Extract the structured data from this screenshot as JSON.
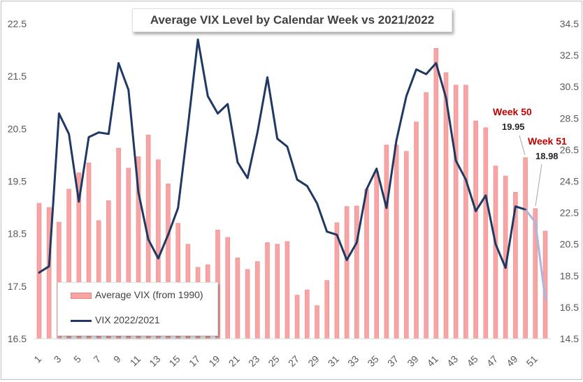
{
  "chart_data": {
    "type": "bar+line",
    "title": "Average VIX Level by Calendar Week vs 2021/2022",
    "xlabel": "",
    "ylabel_left": "",
    "ylabel_right": "",
    "x": [
      1,
      2,
      3,
      4,
      5,
      6,
      7,
      8,
      9,
      10,
      11,
      12,
      13,
      14,
      15,
      16,
      17,
      18,
      19,
      20,
      21,
      22,
      23,
      24,
      25,
      26,
      27,
      28,
      29,
      30,
      31,
      32,
      33,
      34,
      35,
      36,
      37,
      38,
      39,
      40,
      41,
      42,
      43,
      44,
      45,
      46,
      47,
      48,
      49,
      50,
      51,
      52
    ],
    "x_tick_labels": [
      "1",
      "3",
      "5",
      "7",
      "9",
      "11",
      "13",
      "15",
      "17",
      "19",
      "21",
      "23",
      "25",
      "27",
      "29",
      "31",
      "33",
      "35",
      "37",
      "39",
      "41",
      "43",
      "45",
      "47",
      "49",
      "51"
    ],
    "y_left_ticks": [
      "16.5",
      "17.5",
      "18.5",
      "19.5",
      "20.5",
      "21.5",
      "22.5"
    ],
    "y_right_ticks": [
      "14.5",
      "16.5",
      "18.5",
      "20.5",
      "22.5",
      "24.5",
      "26.5",
      "28.5",
      "30.5",
      "32.5",
      "34.5"
    ],
    "ylim_left": [
      16.5,
      22.5
    ],
    "ylim_right": [
      14.5,
      34.5
    ],
    "series": [
      {
        "name": "Average VIX (from 1990)",
        "type": "bar",
        "axis": "left",
        "color": "#f6a4a4",
        "values": [
          19.08,
          19.0,
          18.72,
          19.35,
          19.66,
          19.85,
          18.75,
          19.13,
          20.13,
          19.75,
          19.97,
          20.38,
          19.91,
          19.45,
          18.7,
          18.3,
          17.86,
          17.91,
          18.57,
          18.43,
          18.04,
          17.82,
          17.97,
          18.33,
          18.3,
          18.35,
          17.33,
          17.43,
          17.13,
          17.61,
          18.71,
          19.02,
          19.03,
          19.35,
          19.68,
          20.19,
          20.19,
          20.07,
          20.63,
          21.19,
          22.03,
          21.57,
          21.33,
          21.33,
          20.65,
          20.52,
          19.79,
          19.6,
          19.29,
          19.95,
          18.98,
          18.55
        ]
      },
      {
        "name": "VIX 2022/2021",
        "type": "line",
        "axis": "right",
        "color": "#1f3864",
        "values": [
          18.7,
          19.1,
          28.8,
          27.5,
          23.2,
          27.3,
          27.6,
          27.5,
          32.0,
          30.3,
          23.8,
          20.8,
          19.6,
          21.1,
          22.8,
          28.0,
          33.5,
          29.9,
          28.8,
          29.4,
          25.7,
          24.7,
          27.6,
          31.1,
          27.2,
          26.7,
          24.6,
          24.2,
          23.1,
          21.3,
          21.1,
          19.5,
          20.6,
          24.0,
          25.3,
          22.8,
          27.1,
          29.9,
          31.6,
          31.3,
          32.0,
          29.8,
          25.8,
          24.6,
          22.6,
          23.6,
          20.5,
          19.0,
          22.9,
          22.7,
          21.9,
          17.0
        ]
      }
    ],
    "annotations": [
      {
        "label": "Week 50",
        "value": "19.95",
        "x": 50
      },
      {
        "label": "Week 51",
        "value": "18.98",
        "x": 51
      }
    ],
    "grid": false,
    "legend_position": "bottom-left"
  }
}
